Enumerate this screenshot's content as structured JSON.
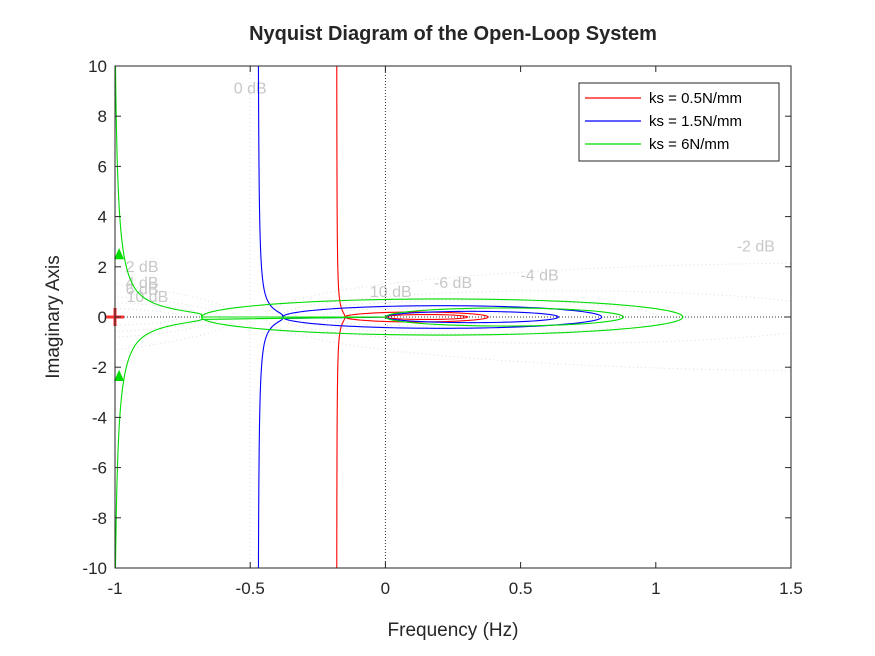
{
  "chart_data": {
    "type": "line",
    "title": "Nyquist Diagram of the Open-Loop System",
    "xlabel": "Frequency (Hz)",
    "ylabel": "Imaginary Axis",
    "xlim": [
      -1,
      1.5
    ],
    "ylim": [
      -10,
      10
    ],
    "xticks": [
      -1,
      -0.5,
      0,
      0.5,
      1,
      1.5
    ],
    "xtick_labels": [
      "-1",
      "-0.5",
      "0",
      "0.5",
      "1",
      "1.5"
    ],
    "yticks": [
      10,
      8,
      6,
      4,
      2,
      0,
      -2,
      -4,
      -6,
      -8,
      -10
    ],
    "ytick_labels": [
      "10",
      "8",
      "6",
      "4",
      "2",
      "0",
      "-2",
      "-4",
      "-6",
      "-8",
      "-10"
    ],
    "grid": "M-circles (dotted)",
    "grid_labels": [
      {
        "text": "0 dB",
        "x": -0.5,
        "y": 8.9
      },
      {
        "text": "-2 dB",
        "x": 1.37,
        "y": 2.6
      },
      {
        "text": "-4 dB",
        "x": 0.57,
        "y": 1.45
      },
      {
        "text": "-6 dB",
        "x": 0.25,
        "y": 1.15
      },
      {
        "text": "10 dB",
        "x": 0.02,
        "y": 0.8
      },
      {
        "text": "2 dB",
        "x": -0.9,
        "y": 1.8
      },
      {
        "text": "4 dB",
        "x": -0.9,
        "y": 1.15
      },
      {
        "text": "6 dB",
        "x": -0.9,
        "y": 0.9
      },
      {
        "text": "10 dB",
        "x": -0.88,
        "y": 0.6
      }
    ],
    "critical_point": {
      "x": -1,
      "y": 0
    },
    "legend_position": "top-right",
    "series": [
      {
        "name": "ks = 0.5N/mm",
        "color": "#ff0000",
        "asymptote_real": -0.18,
        "loop_right": 0.38,
        "loop_half_height": 0.22,
        "crossover_real": -0.15
      },
      {
        "name": "ks = 1.5N/mm",
        "color": "#0000ff",
        "asymptote_real": -0.47,
        "loop_right": 0.8,
        "loop_half_height": 0.5,
        "crossover_real": -0.38
      },
      {
        "name": "ks = 6N/mm",
        "color": "#00dd00",
        "asymptote_real": -1.0,
        "loop_right": 1.1,
        "loop_half_height": 0.8,
        "crossover_real": -0.68
      }
    ]
  }
}
